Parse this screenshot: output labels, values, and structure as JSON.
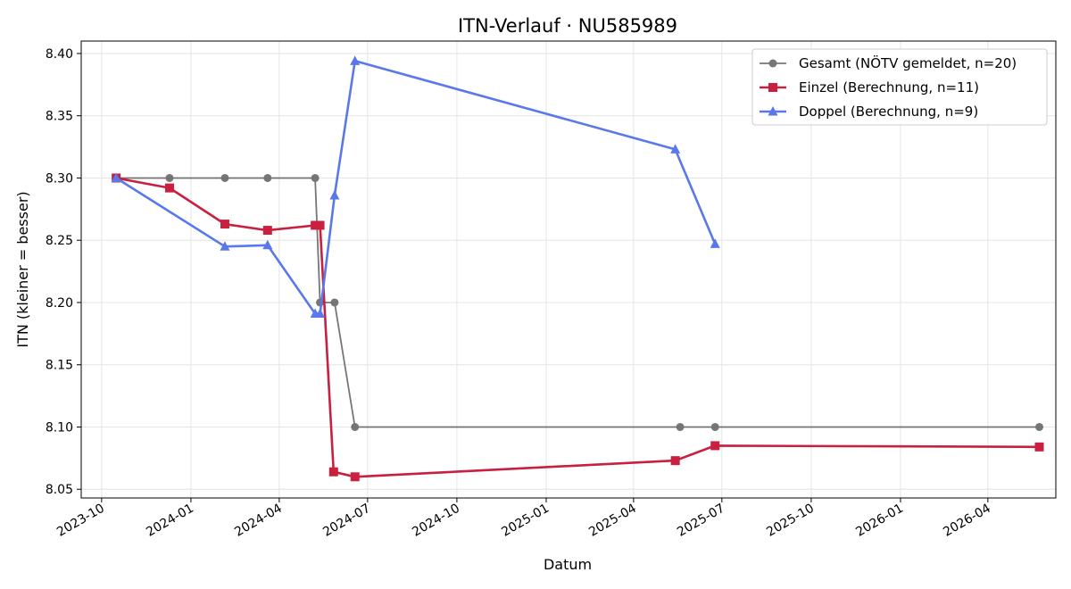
{
  "chart_data": {
    "type": "line",
    "title": "ITN-Verlauf · NU585989",
    "xlabel": "Datum",
    "ylabel": "ITN  (kleiner = besser)",
    "x_ticks": [
      "2023-10",
      "2024-01",
      "2024-04",
      "2024-07",
      "2024-10",
      "2025-01",
      "2025-04",
      "2025-07",
      "2025-10",
      "2026-01",
      "2026-04"
    ],
    "y_ticks": [
      "8.05",
      "8.10",
      "8.15",
      "8.20",
      "8.25",
      "8.30",
      "8.35",
      "8.40"
    ],
    "xlim": [
      "2023-09-10",
      "2026-06-10"
    ],
    "ylim": [
      8.043,
      8.41
    ],
    "grid": true,
    "legend_position": "top-right",
    "series": [
      {
        "name": "Gesamt (NÖTV gemeldet, n=20)",
        "color": "#555555",
        "marker": "circle",
        "points": [
          {
            "x": "2023-10-16",
            "y": 8.3
          },
          {
            "x": "2023-12-10",
            "y": 8.3
          },
          {
            "x": "2024-02-05",
            "y": 8.3
          },
          {
            "x": "2024-03-20",
            "y": 8.3
          },
          {
            "x": "2024-05-08",
            "y": 8.3
          },
          {
            "x": "2024-05-13",
            "y": 8.2
          },
          {
            "x": "2024-05-28",
            "y": 8.2
          },
          {
            "x": "2024-06-18",
            "y": 8.1
          },
          {
            "x": "2025-05-19",
            "y": 8.1
          },
          {
            "x": "2025-06-24",
            "y": 8.1
          },
          {
            "x": "2026-05-24",
            "y": 8.1
          }
        ]
      },
      {
        "name": "Einzel (Berechnung, n=11)",
        "color": "#c8203e",
        "marker": "square",
        "points": [
          {
            "x": "2023-10-16",
            "y": 8.3
          },
          {
            "x": "2023-12-10",
            "y": 8.292
          },
          {
            "x": "2024-02-05",
            "y": 8.263
          },
          {
            "x": "2024-03-20",
            "y": 8.258
          },
          {
            "x": "2024-05-08",
            "y": 8.262
          },
          {
            "x": "2024-05-13",
            "y": 8.262
          },
          {
            "x": "2024-05-27",
            "y": 8.064
          },
          {
            "x": "2024-06-18",
            "y": 8.06
          },
          {
            "x": "2025-05-14",
            "y": 8.073
          },
          {
            "x": "2025-06-24",
            "y": 8.085
          },
          {
            "x": "2026-05-24",
            "y": 8.084
          }
        ]
      },
      {
        "name": "Doppel (Berechnung, n=9)",
        "color": "#5a78ea",
        "marker": "triangle",
        "points": [
          {
            "x": "2023-10-16",
            "y": 8.3
          },
          {
            "x": "2024-02-05",
            "y": 8.245
          },
          {
            "x": "2024-03-20",
            "y": 8.246
          },
          {
            "x": "2024-05-08",
            "y": 8.191
          },
          {
            "x": "2024-05-13",
            "y": 8.191
          },
          {
            "x": "2024-05-28",
            "y": 8.286
          },
          {
            "x": "2024-06-18",
            "y": 8.394
          },
          {
            "x": "2025-05-14",
            "y": 8.323
          },
          {
            "x": "2025-06-24",
            "y": 8.247
          }
        ]
      }
    ]
  }
}
